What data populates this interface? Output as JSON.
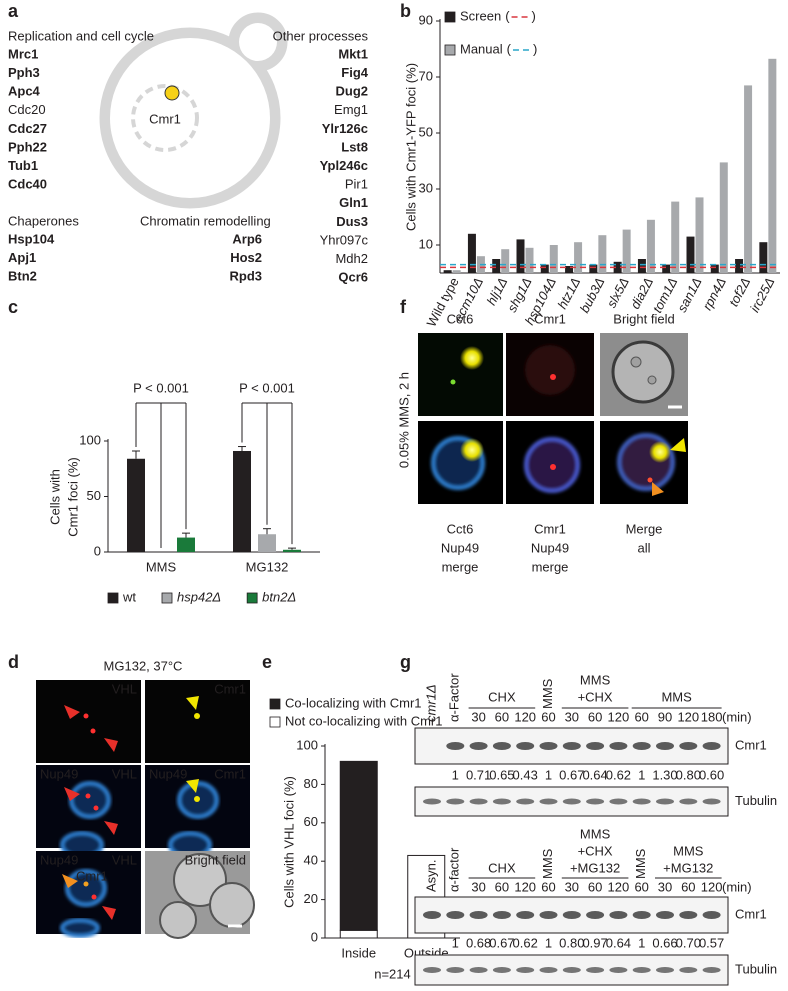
{
  "panel_a": {
    "label": "a",
    "cell_label": "Cmr1",
    "groups": [
      {
        "title": "Replication and cell cycle",
        "items": [
          {
            "name": "Mrc1",
            "bold": true
          },
          {
            "name": "Pph3",
            "bold": true
          },
          {
            "name": "Apc4",
            "bold": true
          },
          {
            "name": "Cdc20",
            "bold": false
          },
          {
            "name": "Cdc27",
            "bold": true
          },
          {
            "name": "Pph22",
            "bold": true
          },
          {
            "name": "Tub1",
            "bold": true
          },
          {
            "name": "Cdc40",
            "bold": true
          }
        ]
      },
      {
        "title": "Other processes",
        "items": [
          {
            "name": "Mkt1",
            "bold": true
          },
          {
            "name": "Fig4",
            "bold": true
          },
          {
            "name": "Dug2",
            "bold": true
          },
          {
            "name": "Emg1",
            "bold": false
          },
          {
            "name": "Ylr126c",
            "bold": true
          },
          {
            "name": "Lst8",
            "bold": true
          },
          {
            "name": "Ypl246c",
            "bold": true
          },
          {
            "name": "Pir1",
            "bold": false
          },
          {
            "name": "Gln1",
            "bold": true
          },
          {
            "name": "Dus3",
            "bold": true
          },
          {
            "name": "Yhr097c",
            "bold": false
          },
          {
            "name": "Mdh2",
            "bold": false
          },
          {
            "name": "Qcr6",
            "bold": true
          }
        ]
      },
      {
        "title": "Chaperones",
        "items": [
          {
            "name": "Hsp104",
            "bold": true
          },
          {
            "name": "Apj1",
            "bold": true
          },
          {
            "name": "Btn2",
            "bold": true
          }
        ]
      },
      {
        "title": "Chromatin remodelling",
        "items": [
          {
            "name": "Arp6",
            "bold": true
          },
          {
            "name": "Hos2",
            "bold": true
          },
          {
            "name": "Rpd3",
            "bold": true
          }
        ]
      }
    ]
  },
  "chart_data": [
    {
      "label": "b",
      "type": "bar",
      "ylabel": [
        "Cells with Cmr1-YFP foci (%)"
      ],
      "categories": [
        "Wild type",
        "ecm10Δ",
        "hlj1Δ",
        "shg1Δ",
        "hsp104Δ",
        "htz1Δ",
        "bub3Δ",
        "slx5Δ",
        "dia2Δ",
        "tom1Δ",
        "san1Δ",
        "rpn4Δ",
        "tof2Δ",
        "irc25Δ"
      ],
      "series": [
        {
          "name": "Screen",
          "color": "#231f20",
          "values": [
            1,
            14,
            5,
            12,
            3,
            2.5,
            3,
            4,
            5,
            3,
            13,
            3,
            5,
            11
          ],
          "reference": 2,
          "reference_color": "#d9363e"
        },
        {
          "name": "Manual",
          "color": "#a7a9ac",
          "values": [
            1,
            6,
            8.5,
            9,
            10,
            11,
            13.5,
            15.5,
            19,
            25.5,
            27,
            39.5,
            67,
            76.5
          ],
          "reference": 3,
          "reference_color": "#2aa6c9"
        }
      ],
      "legend_brackets": [
        "(",
        ")"
      ],
      "ylim": [
        0,
        90
      ],
      "yticks": [
        10,
        30,
        50,
        70,
        90
      ]
    },
    {
      "label": "c",
      "type": "bar",
      "ylabel": [
        "Cells with",
        "Cmr1 foci (%)"
      ],
      "categories": [
        "MMS",
        "MG132"
      ],
      "series": [
        {
          "name": "wt",
          "color": "#231f20",
          "values": [
            84,
            91
          ],
          "errors": [
            7,
            4
          ]
        },
        {
          "name": "hsp42Δ",
          "color": "#a7a9ac",
          "values": [
            0,
            16
          ],
          "errors": [
            null,
            5
          ]
        },
        {
          "name": "btn2Δ",
          "color": "#1a7a3a",
          "values": [
            13,
            2
          ],
          "errors": [
            4,
            1.5
          ]
        }
      ],
      "ylim": [
        0,
        100
      ],
      "yticks": [
        0,
        50,
        100
      ],
      "annotations": [
        "P < 0.001",
        "P < 0.001"
      ]
    },
    {
      "label": "e",
      "type": "stacked_bar",
      "ylabel": [
        "Cells with VHL foci (%)"
      ],
      "categories": [
        "Inside",
        "Outside"
      ],
      "series": [
        {
          "name": "Co-localizing with Cmr1",
          "color": "#231f20",
          "values": [
            88,
            0
          ]
        },
        {
          "name": "Not co-localizing with Cmr1",
          "color": "#ffffff",
          "values": [
            4,
            43
          ]
        }
      ],
      "ylim": [
        0,
        100
      ],
      "yticks": [
        0,
        20,
        40,
        60,
        80,
        100
      ],
      "note": "n=214"
    }
  ],
  "panel_d": {
    "label": "d",
    "title": "MG132, 37°C",
    "tiles": [
      {
        "labels": [
          "VHL"
        ],
        "colors": [
          "#ff2a2a"
        ]
      },
      {
        "labels": [
          "Cmr1"
        ],
        "colors": [
          "#f2e600"
        ]
      },
      {
        "labels": [
          "Nup49",
          "VHL"
        ],
        "colors": [
          "#3d9be9",
          "#ff2a2a"
        ]
      },
      {
        "labels": [
          "Nup49",
          "Cmr1"
        ],
        "colors": [
          "#3d9be9",
          "#f2e600"
        ]
      },
      {
        "labels": [
          "Nup49",
          "VHL",
          "Cmr1"
        ],
        "colors": [
          "#3d9be9",
          "#ff2a2a",
          "#f2e600"
        ]
      },
      {
        "labels": [
          "Bright field"
        ],
        "colors": [
          "#ffffff"
        ]
      }
    ]
  },
  "panel_f": {
    "label": "f",
    "side_label": "0.05% MMS, 2 h",
    "columns": [
      "Cct6",
      "Cmr1",
      "Bright field"
    ],
    "captions": [
      [
        "Cct6",
        "Nup49",
        "merge"
      ],
      [
        "Cmr1",
        "Nup49",
        "merge"
      ],
      [
        "Merge",
        "all"
      ]
    ]
  },
  "panel_g": {
    "label": "g",
    "blots": [
      {
        "lane_labels": [
          "cmr1Δ",
          "α-Factor"
        ],
        "groups": [
          {
            "label": [
              "CHX"
            ],
            "times": [
              30,
              60,
              120
            ]
          },
          {
            "label": [
              "MMS"
            ],
            "rotated": true,
            "times": [
              60
            ]
          },
          {
            "label": [
              "MMS",
              "+CHX"
            ],
            "times": [
              30,
              60,
              120
            ]
          },
          {
            "label": [
              "MMS"
            ],
            "times": [
              60,
              90,
              120,
              180
            ]
          }
        ],
        "unit": "(min)",
        "bands": [
          "Cmr1",
          "Tubulin"
        ],
        "quant": [
          "1",
          "0.71",
          "0.65",
          "0.43",
          "1",
          "0.67",
          "0.64",
          "0.62",
          "1",
          "1.30",
          "0.80",
          "0.60"
        ]
      },
      {
        "lane_labels": [
          "Asyn.",
          "α-factor"
        ],
        "groups": [
          {
            "label": [
              "CHX"
            ],
            "times": [
              30,
              60,
              120
            ]
          },
          {
            "label": [
              "MMS"
            ],
            "rotated": true,
            "times": [
              60
            ]
          },
          {
            "label": [
              "MMS",
              "+CHX",
              "+MG132"
            ],
            "times": [
              30,
              60,
              120
            ]
          },
          {
            "label": [
              "MMS"
            ],
            "rotated": true,
            "times": [
              60
            ]
          },
          {
            "label": [
              "MMS",
              "+MG132"
            ],
            "times": [
              30,
              60,
              120
            ]
          }
        ],
        "unit": "(min)",
        "bands": [
          "Cmr1",
          "Tubulin"
        ],
        "quant": [
          "1",
          "0.68",
          "0.67",
          "0.62",
          "1",
          "0.80",
          "0.97",
          "0.64",
          "1",
          "0.66",
          "0.70",
          "0.57"
        ]
      }
    ]
  }
}
